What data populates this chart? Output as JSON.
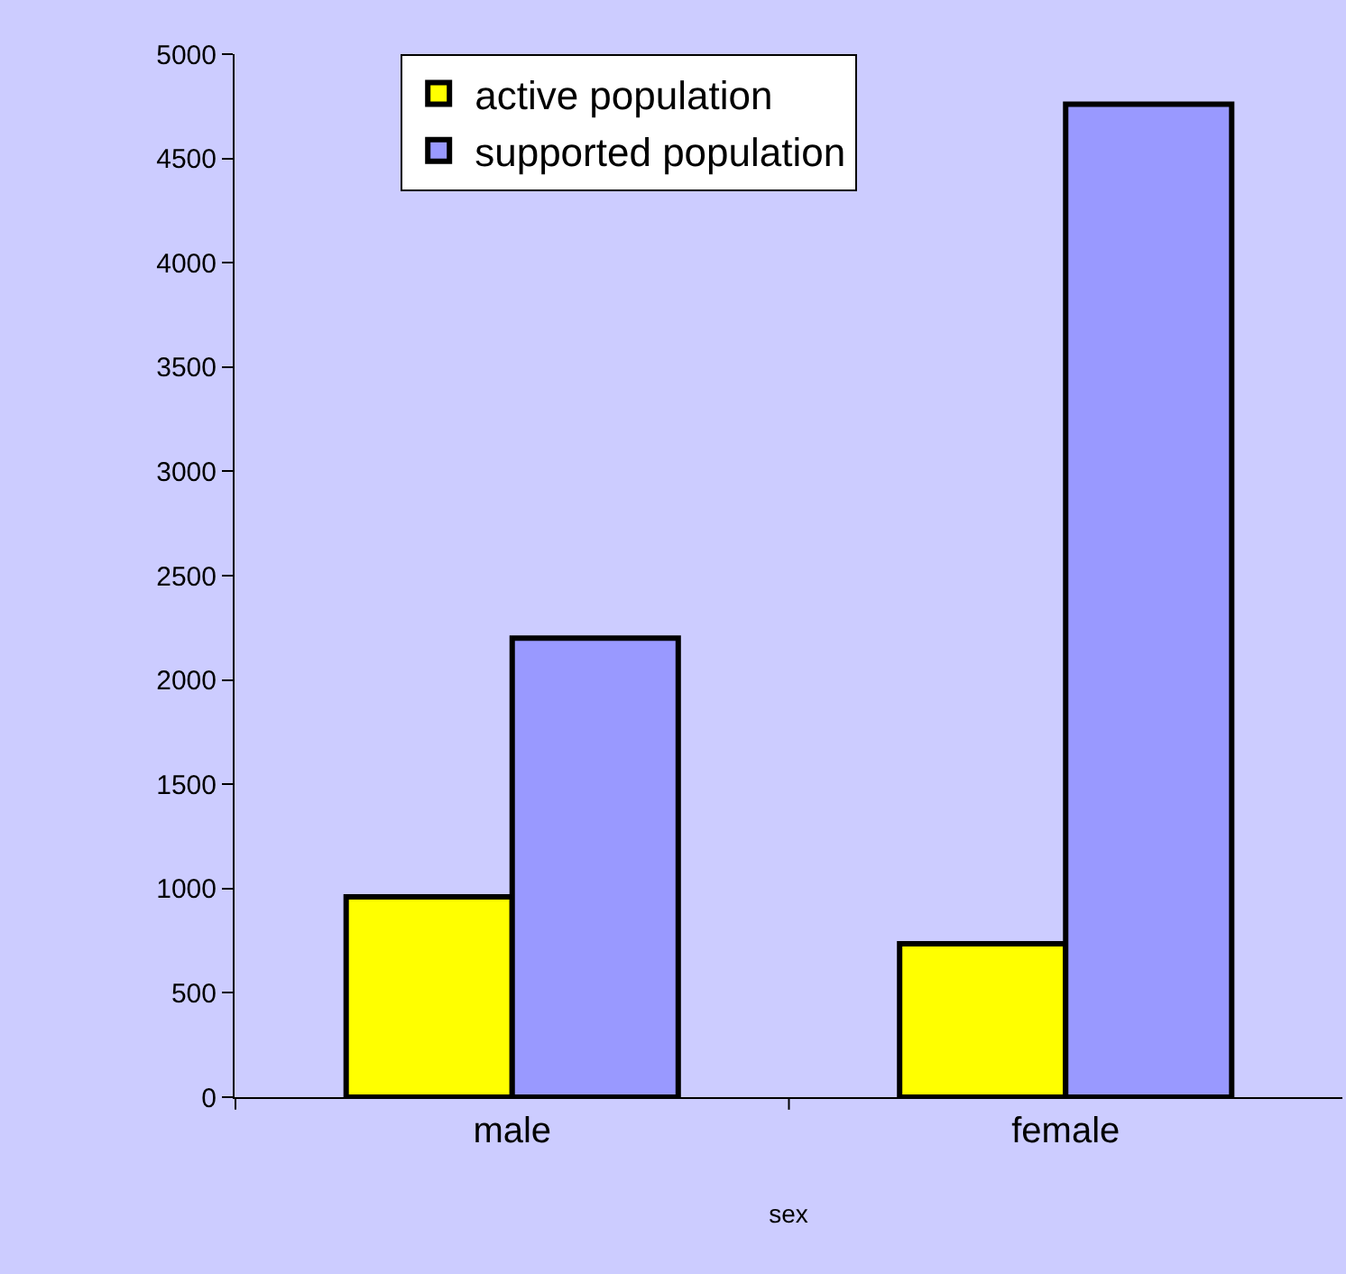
{
  "chart_data": {
    "type": "bar",
    "xlabel": "sex",
    "categories": [
      "male",
      "female"
    ],
    "series": [
      {
        "name": "active population",
        "color": "#ffff00",
        "values": [
          960,
          735
        ]
      },
      {
        "name": "supported population",
        "color": "#9999ff",
        "values": [
          2200,
          4760
        ]
      }
    ],
    "ylim": [
      0,
      5000
    ],
    "yticks": [
      0,
      500,
      1000,
      1500,
      2000,
      2500,
      3000,
      3500,
      4000,
      4500,
      5000
    ],
    "grid": false,
    "legend": "top"
  }
}
